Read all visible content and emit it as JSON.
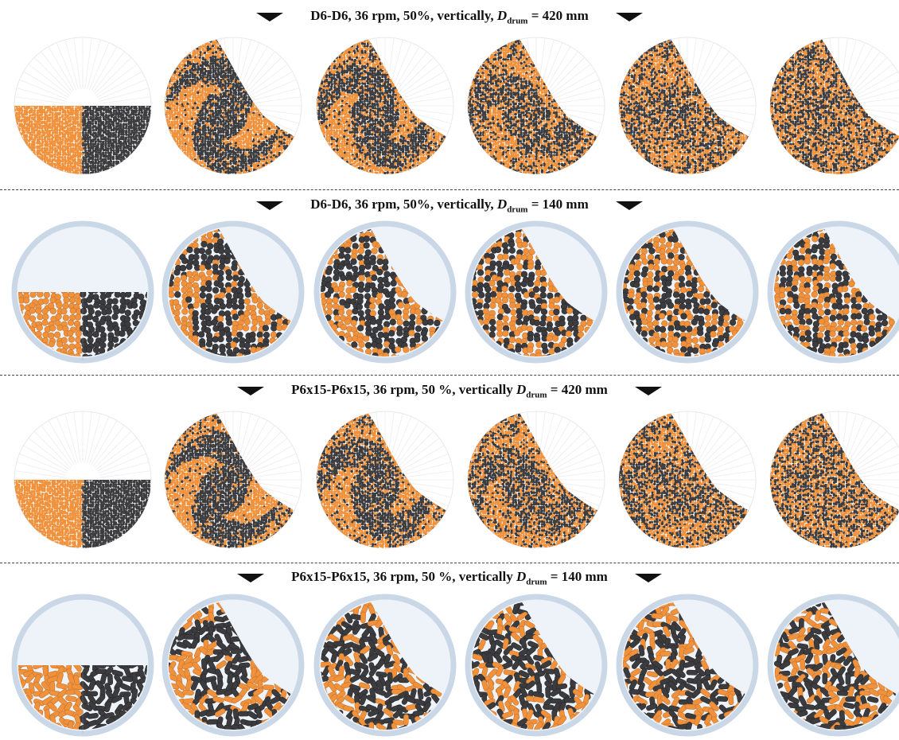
{
  "rows": [
    {
      "title": {
        "prefix": "D6-D6, 36 rpm, 50%, vertically, ",
        "var": "D",
        "sub": "drum",
        "suffix": " = 420 mm"
      },
      "drum_style": "large",
      "particle": "sphere",
      "particle_note": "fine"
    },
    {
      "title": {
        "prefix": "D6-D6, 36 rpm, 50%, vertically, ",
        "var": "D",
        "sub": "drum",
        "suffix": " = 140 mm"
      },
      "drum_style": "small",
      "particle": "sphere",
      "particle_note": "coarse"
    },
    {
      "title": {
        "prefix": "P6x15-P6x15, 36 rpm, 50 %, vertically ",
        "var": "D",
        "sub": "drum",
        "suffix": " = 420 mm"
      },
      "drum_style": "large",
      "particle": "rod",
      "particle_note": "fine"
    },
    {
      "title": {
        "prefix": "P6x15-P6x15, 36 rpm, 50 %, vertically ",
        "var": "D",
        "sub": "drum",
        "suffix": " = 140 mm"
      },
      "drum_style": "small",
      "particle": "rod",
      "particle_note": "coarse"
    }
  ],
  "stages": [
    "initial",
    "stage-1",
    "stage-2",
    "stage-3",
    "stage-4",
    "stage-5"
  ],
  "colors": {
    "orange": "#f0913c",
    "dark": "#3c3c3e",
    "drum_rim_small": "#c9d7e6",
    "drum_bg_small": "#eef3f9",
    "drum_bg_large": "#ffffff",
    "arrow": "#111111",
    "divider": "#444444"
  },
  "icons": {
    "arrow": "triangle-down-icon"
  }
}
